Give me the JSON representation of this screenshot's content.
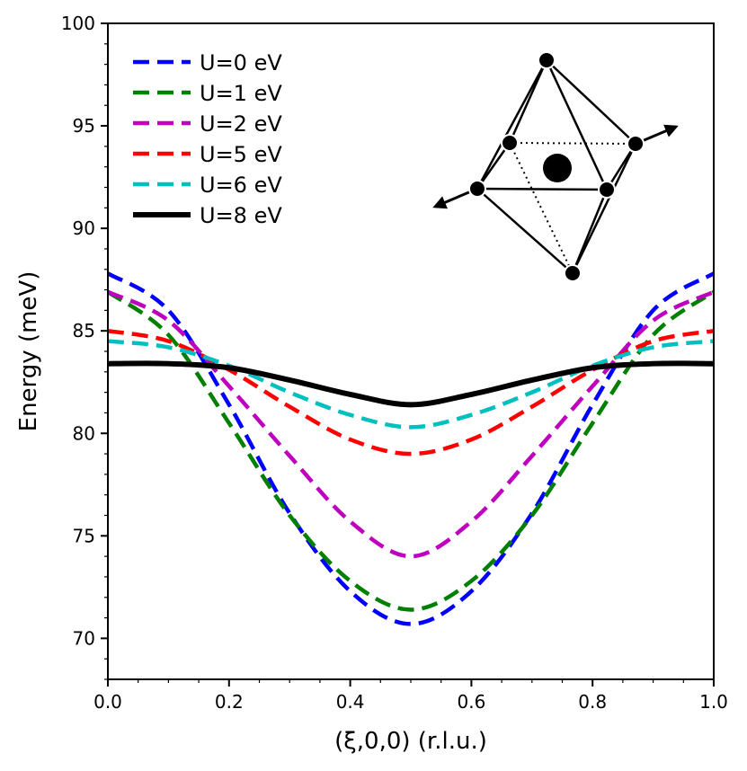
{
  "chart_data": {
    "type": "line",
    "title": "",
    "xlabel": "(ξ,0,0) (r.l.u.)",
    "ylabel": "Energy (meV)",
    "xlim": [
      0.0,
      1.0
    ],
    "ylim": [
      68,
      100
    ],
    "xticks": [
      "0.0",
      "0.2",
      "0.4",
      "0.6",
      "0.8",
      "1.0"
    ],
    "yticks": [
      "70",
      "75",
      "80",
      "85",
      "90",
      "95",
      "100"
    ],
    "legend_position": "top-left",
    "inset": "octahedron-structure-diagram",
    "series": [
      {
        "name": "U=0 eV",
        "color": "#0000ff",
        "style": "dashed",
        "x": [
          0.0,
          0.1,
          0.2,
          0.3,
          0.4,
          0.5,
          0.6,
          0.7,
          0.8,
          0.9,
          1.0
        ],
        "y": [
          87.8,
          86.0,
          81.4,
          76.1,
          72.3,
          70.7,
          72.3,
          76.1,
          81.4,
          86.0,
          87.8
        ]
      },
      {
        "name": "U=1 eV",
        "color": "#008000",
        "style": "dashed",
        "x": [
          0.0,
          0.1,
          0.2,
          0.3,
          0.4,
          0.5,
          0.6,
          0.7,
          0.8,
          0.9,
          1.0
        ],
        "y": [
          86.9,
          84.8,
          80.5,
          76.0,
          72.8,
          71.4,
          72.8,
          76.0,
          80.5,
          84.8,
          86.9
        ]
      },
      {
        "name": "U=2 eV",
        "color": "#bf00bf",
        "style": "dashed",
        "x": [
          0.0,
          0.1,
          0.2,
          0.3,
          0.4,
          0.5,
          0.6,
          0.7,
          0.8,
          0.9,
          1.0
        ],
        "y": [
          86.9,
          85.5,
          82.3,
          78.9,
          75.7,
          74.0,
          75.7,
          78.9,
          82.3,
          85.5,
          86.9
        ]
      },
      {
        "name": "U=5 eV",
        "color": "#ff0000",
        "style": "dashed",
        "x": [
          0.0,
          0.1,
          0.2,
          0.3,
          0.4,
          0.5,
          0.6,
          0.7,
          0.8,
          0.9,
          1.0
        ],
        "y": [
          85.0,
          84.5,
          83.1,
          81.3,
          79.7,
          79.0,
          79.7,
          81.3,
          83.1,
          84.5,
          85.0
        ]
      },
      {
        "name": "U=6 eV",
        "color": "#00bfbf",
        "style": "dashed",
        "x": [
          0.0,
          0.1,
          0.2,
          0.3,
          0.4,
          0.5,
          0.6,
          0.7,
          0.8,
          0.9,
          1.0
        ],
        "y": [
          84.5,
          84.2,
          83.3,
          82.0,
          80.9,
          80.3,
          80.9,
          82.0,
          83.3,
          84.2,
          84.5
        ]
      },
      {
        "name": "U=8 eV",
        "color": "#000000",
        "style": "solid",
        "x": [
          0.0,
          0.1,
          0.2,
          0.3,
          0.4,
          0.5,
          0.6,
          0.7,
          0.8,
          0.9,
          1.0
        ],
        "y": [
          83.4,
          83.4,
          83.2,
          82.6,
          81.9,
          81.4,
          81.9,
          82.6,
          83.2,
          83.4,
          83.4
        ]
      }
    ]
  }
}
